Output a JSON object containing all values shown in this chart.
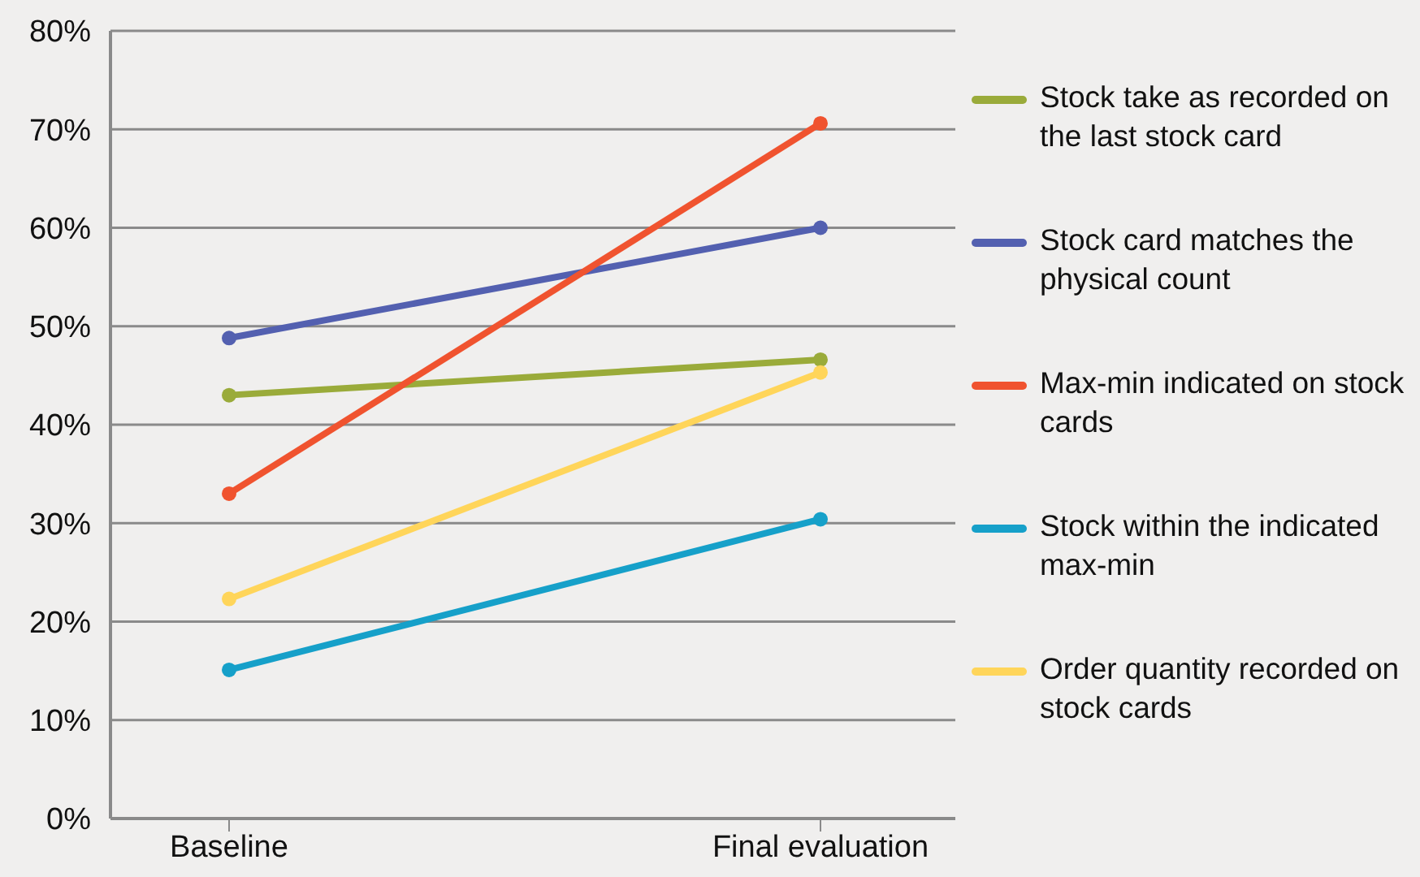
{
  "chart_data": {
    "type": "line",
    "categories": [
      "Baseline",
      "Final evaluation"
    ],
    "series": [
      {
        "name": "Stock take as recorded on the last stock card",
        "color": "#9aab3a",
        "values": [
          43,
          46.6
        ]
      },
      {
        "name": "Stock card matches the physical count",
        "color": "#5360b0",
        "values": [
          48.8,
          60
        ]
      },
      {
        "name": "Max-min indicated on stock cards",
        "color": "#f0532f",
        "values": [
          33,
          70.6
        ]
      },
      {
        "name": "Stock within the indicated max-min",
        "color": "#16a0c9",
        "values": [
          15.1,
          30.4
        ]
      },
      {
        "name": "Order quantity recorded on stock cards",
        "color": "#ffd55a",
        "values": [
          22.3,
          45.3
        ]
      }
    ],
    "ylim": [
      0,
      80
    ],
    "yticks": [
      {
        "value": 0,
        "label": "0%"
      },
      {
        "value": 10,
        "label": "10%"
      },
      {
        "value": 20,
        "label": "20%"
      },
      {
        "value": 30,
        "label": "30%"
      },
      {
        "value": 40,
        "label": "40%"
      },
      {
        "value": 50,
        "label": "50%"
      },
      {
        "value": 60,
        "label": "60%"
      },
      {
        "value": 70,
        "label": "70%"
      },
      {
        "value": 80,
        "label": "80%"
      }
    ],
    "grid": "y",
    "legend": "right",
    "marker": "circle",
    "line_style": "solid"
  }
}
